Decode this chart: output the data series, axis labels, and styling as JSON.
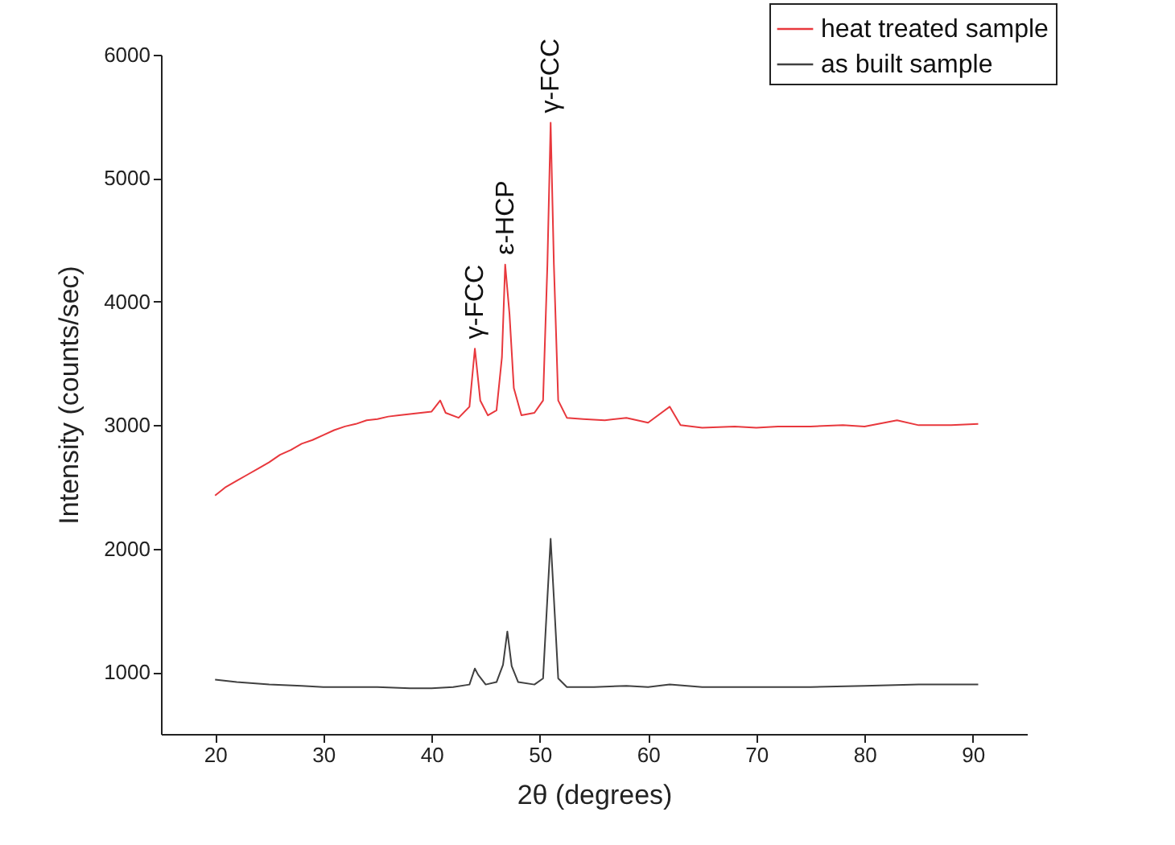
{
  "chart_data": {
    "type": "line",
    "xlabel": "2θ (degrees)",
    "ylabel": "Intensity (counts/sec)",
    "xlim": [
      15,
      95
    ],
    "ylim": [
      500,
      6000
    ],
    "xticks": [
      20,
      30,
      40,
      50,
      60,
      70,
      80,
      90
    ],
    "yticks": [
      1000,
      2000,
      3000,
      4000,
      5000,
      6000
    ],
    "legend": "top right",
    "grid": false,
    "annotations": [
      {
        "text": "γ-FCC",
        "x": 44,
        "y": 3620
      },
      {
        "text": "ε-HCP",
        "x": 46.8,
        "y": 4300
      },
      {
        "text": "γ-FCC",
        "x": 51,
        "y": 5450
      }
    ],
    "series": [
      {
        "name": "heat treated sample",
        "color": "#e8383d",
        "x": [
          20,
          21,
          22,
          23,
          24,
          25,
          26,
          27,
          28,
          29,
          30,
          31,
          32,
          33,
          34,
          35,
          36,
          37,
          38,
          39,
          40,
          40.8,
          41.3,
          42.5,
          43.5,
          44,
          44.5,
          45.2,
          46,
          46.5,
          46.8,
          47.2,
          47.6,
          48.3,
          49.5,
          50.3,
          50.7,
          51,
          51.3,
          51.7,
          52.5,
          54,
          56,
          58,
          60,
          62,
          63,
          65,
          68,
          70,
          72,
          75,
          78,
          80,
          83,
          85,
          88,
          90.5
        ],
        "values": [
          2430,
          2500,
          2550,
          2600,
          2650,
          2700,
          2760,
          2800,
          2850,
          2880,
          2920,
          2960,
          2990,
          3010,
          3040,
          3050,
          3070,
          3080,
          3090,
          3100,
          3110,
          3200,
          3100,
          3060,
          3150,
          3620,
          3200,
          3080,
          3120,
          3550,
          4300,
          3900,
          3300,
          3080,
          3100,
          3200,
          4300,
          5450,
          4300,
          3200,
          3060,
          3050,
          3040,
          3060,
          3020,
          3150,
          3000,
          2980,
          2990,
          2980,
          2990,
          2990,
          3000,
          2990,
          3040,
          3000,
          3000,
          3010
        ]
      },
      {
        "name": "as built sample",
        "color": "#404040",
        "x": [
          20,
          22,
          25,
          28,
          30,
          32,
          35,
          38,
          40,
          42,
          43.5,
          44,
          44.3,
          45,
          46,
          46.6,
          47,
          47.4,
          48,
          49.5,
          50.3,
          50.7,
          51,
          51.3,
          51.7,
          52.5,
          55,
          58,
          60,
          62,
          65,
          70,
          75,
          80,
          85,
          90.5
        ],
        "values": [
          940,
          920,
          900,
          890,
          880,
          880,
          880,
          870,
          870,
          880,
          900,
          1030,
          980,
          900,
          920,
          1060,
          1330,
          1050,
          920,
          900,
          950,
          1600,
          2080,
          1600,
          950,
          880,
          880,
          890,
          880,
          900,
          880,
          880,
          880,
          890,
          900,
          900
        ]
      }
    ]
  }
}
